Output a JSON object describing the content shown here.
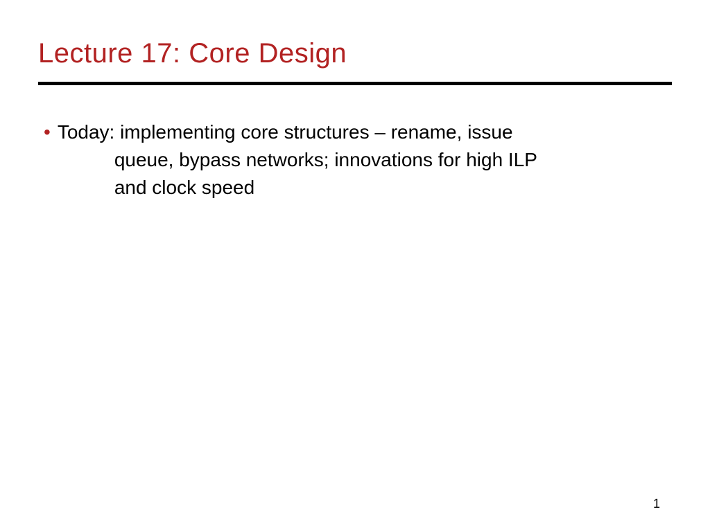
{
  "slide": {
    "title": "Lecture 17: Core Design",
    "title_color": "#b22222",
    "title_fontsize": 40,
    "divider_color": "#000000",
    "divider_height": 5,
    "bullet_color": "#b22222",
    "body_color": "#000000",
    "body_fontsize": 28,
    "background_color": "#ffffff",
    "bullet": {
      "line1": "Today: implementing core structures – rename, issue",
      "line2": "queue, bypass networks; innovations for high ILP",
      "line3": "and clock speed"
    },
    "page_number": "1"
  }
}
